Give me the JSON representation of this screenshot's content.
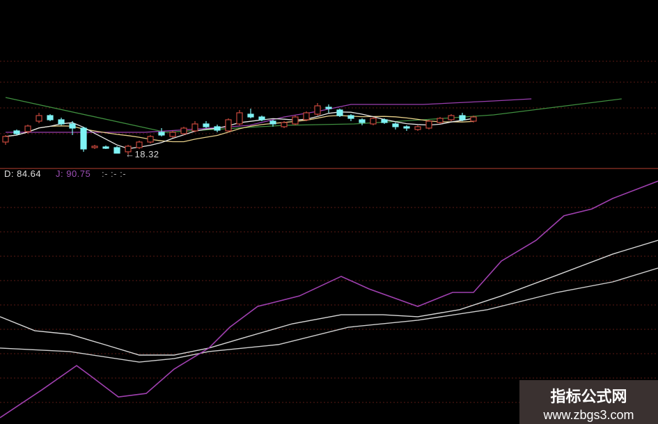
{
  "chart_data": {
    "type": "candlestick",
    "grid": true,
    "colors": {
      "up": "#c8483c",
      "down": "#7ff3f5",
      "ma_long": "#3f8f3f",
      "ma_mid": "#9b3fb0",
      "ma5": "#e8e8e8",
      "ma10": "#e8d08a",
      "k": "#d8d8d8",
      "d": "#d0d0d0",
      "j": "#a040b0",
      "separator": "#7a2a20",
      "background": "#000000"
    },
    "candles": [
      [
        18.5,
        18.6,
        18.46,
        18.58
      ],
      [
        18.66,
        18.68,
        18.6,
        18.62
      ],
      [
        18.65,
        18.75,
        18.62,
        18.73
      ],
      [
        18.8,
        18.92,
        18.77,
        18.88
      ],
      [
        18.88,
        18.9,
        18.8,
        18.82
      ],
      [
        18.82,
        18.85,
        18.74,
        18.76
      ],
      [
        18.76,
        18.8,
        18.6,
        18.7
      ],
      [
        18.7,
        18.72,
        18.36,
        18.4
      ],
      [
        18.42,
        18.46,
        18.4,
        18.44
      ],
      [
        18.43,
        18.45,
        18.4,
        18.41
      ],
      [
        18.42,
        18.44,
        18.34,
        18.34
      ],
      [
        18.36,
        18.46,
        18.32,
        18.44
      ],
      [
        18.42,
        18.52,
        18.4,
        18.5
      ],
      [
        18.5,
        18.6,
        18.48,
        18.58
      ],
      [
        18.64,
        18.7,
        18.58,
        18.6
      ],
      [
        18.58,
        18.66,
        18.56,
        18.64
      ],
      [
        18.62,
        18.72,
        18.6,
        18.7
      ],
      [
        18.66,
        18.8,
        18.64,
        18.76
      ],
      [
        18.76,
        18.8,
        18.7,
        18.72
      ],
      [
        18.72,
        18.75,
        18.64,
        18.67
      ],
      [
        18.66,
        18.84,
        18.64,
        18.82
      ],
      [
        18.76,
        18.96,
        18.74,
        18.92
      ],
      [
        18.9,
        18.98,
        18.84,
        18.86
      ],
      [
        18.86,
        18.88,
        18.8,
        18.82
      ],
      [
        18.8,
        18.82,
        18.72,
        18.76
      ],
      [
        18.72,
        18.8,
        18.7,
        18.78
      ],
      [
        18.76,
        18.88,
        18.74,
        18.86
      ],
      [
        18.82,
        18.94,
        18.8,
        18.92
      ],
      [
        18.9,
        19.06,
        18.88,
        19.02
      ],
      [
        19.0,
        19.04,
        18.92,
        18.98
      ],
      [
        18.96,
        18.98,
        18.86,
        18.88
      ],
      [
        18.88,
        18.9,
        18.8,
        18.84
      ],
      [
        18.82,
        18.84,
        18.74,
        18.78
      ],
      [
        18.76,
        18.86,
        18.74,
        18.84
      ],
      [
        18.82,
        18.84,
        18.76,
        18.78
      ],
      [
        18.76,
        18.78,
        18.68,
        18.72
      ],
      [
        18.72,
        18.74,
        18.66,
        18.7
      ],
      [
        18.68,
        18.74,
        18.66,
        18.72
      ],
      [
        18.7,
        18.82,
        18.68,
        18.8
      ],
      [
        18.78,
        18.86,
        18.76,
        18.84
      ],
      [
        18.82,
        18.9,
        18.8,
        18.88
      ],
      [
        18.88,
        18.92,
        18.8,
        18.82
      ],
      [
        18.8,
        18.88,
        18.78,
        18.86
      ]
    ],
    "ma_long": [
      [
        0,
        19.14
      ],
      [
        14.4,
        18.64
      ],
      [
        25,
        18.74
      ],
      [
        31.3,
        18.76
      ],
      [
        37.5,
        18.82
      ],
      [
        43.8,
        18.89
      ],
      [
        48.8,
        18.99
      ],
      [
        55.3,
        19.12
      ]
    ],
    "ma_mid": [
      [
        0,
        18.64
      ],
      [
        12.5,
        18.64
      ],
      [
        17.5,
        18.69
      ],
      [
        21.9,
        18.74
      ],
      [
        25,
        18.86
      ],
      [
        28,
        18.94
      ],
      [
        31,
        19.04
      ],
      [
        37.5,
        19.04
      ],
      [
        43.8,
        19.09
      ],
      [
        47.2,
        19.12
      ]
    ],
    "low_label": "←18.32",
    "low_index": 11,
    "indicator": {
      "d_label": "D: 84.64",
      "j_label": "J: 90.75",
      "trail": ":- :- :-",
      "k": [
        [
          0,
          42.8
        ],
        [
          4,
          37.2
        ],
        [
          8,
          35.8
        ],
        [
          12,
          31.7
        ],
        [
          16,
          27.5
        ],
        [
          20,
          27.5
        ],
        [
          24,
          30.3
        ],
        [
          28,
          34.4
        ],
        [
          33.6,
          40
        ],
        [
          39.2,
          43.6
        ],
        [
          44,
          43.6
        ],
        [
          48,
          42.8
        ],
        [
          52.8,
          45.6
        ],
        [
          57.6,
          51.1
        ],
        [
          64,
          59.4
        ],
        [
          70.4,
          67.8
        ],
        [
          75.6,
          73.3
        ]
      ],
      "d": [
        [
          0,
          30.3
        ],
        [
          8,
          28.9
        ],
        [
          16,
          24.7
        ],
        [
          20,
          26.1
        ],
        [
          24,
          28.9
        ],
        [
          32,
          31.7
        ],
        [
          40,
          38.6
        ],
        [
          48,
          41.4
        ],
        [
          56,
          45.6
        ],
        [
          64,
          52.5
        ],
        [
          70.4,
          56.7
        ],
        [
          75.6,
          62.2
        ]
      ],
      "j": [
        [
          0,
          2.5
        ],
        [
          4.8,
          13.6
        ],
        [
          8.8,
          23.3
        ],
        [
          10.4,
          19.2
        ],
        [
          13.6,
          10.8
        ],
        [
          16.8,
          12.2
        ],
        [
          20,
          21.9
        ],
        [
          24,
          30.3
        ],
        [
          26.4,
          38.6
        ],
        [
          29.6,
          46.9
        ],
        [
          34.4,
          51.1
        ],
        [
          39.2,
          58.9
        ],
        [
          42.4,
          53.9
        ],
        [
          48,
          46.9
        ],
        [
          52,
          52.5
        ],
        [
          54.4,
          52.5
        ],
        [
          57.6,
          65
        ],
        [
          61.6,
          73.3
        ],
        [
          64.8,
          83.1
        ],
        [
          68,
          85.8
        ],
        [
          70.4,
          90
        ],
        [
          75.6,
          96.9
        ]
      ]
    }
  },
  "watermark": {
    "title": "指标公式网",
    "url": "www.zbgs3.com"
  }
}
